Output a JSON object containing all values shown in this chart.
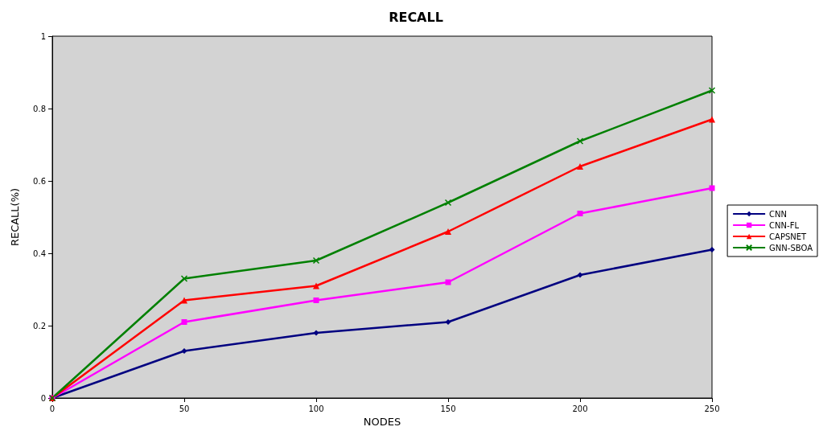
{
  "chart_data": {
    "type": "line",
    "title": "RECALL",
    "xlabel": "NODES",
    "ylabel": "RECALL(%)",
    "x": [
      0,
      50,
      100,
      150,
      200,
      250
    ],
    "xlim": [
      0,
      250
    ],
    "xticks": [
      0,
      50,
      100,
      150,
      200,
      250
    ],
    "ylim": [
      0,
      1
    ],
    "yticks": [
      0,
      0.2,
      0.4,
      0.6,
      0.8,
      1
    ],
    "grid": false,
    "legend": "right",
    "series": [
      {
        "name": "CNN",
        "color": "#000080",
        "marker": "diamond",
        "values": [
          0,
          0.13,
          0.18,
          0.21,
          0.34,
          0.41
        ]
      },
      {
        "name": "CNN-FL",
        "color": "#ff00ff",
        "marker": "square",
        "values": [
          0,
          0.21,
          0.27,
          0.32,
          0.51,
          0.58
        ]
      },
      {
        "name": "CAPSNET",
        "color": "#ff0000",
        "marker": "triangle",
        "values": [
          0,
          0.27,
          0.31,
          0.46,
          0.64,
          0.77
        ]
      },
      {
        "name": "GNN-SBOA",
        "color": "#008000",
        "marker": "cross",
        "values": [
          0,
          0.33,
          0.38,
          0.54,
          0.71,
          0.85
        ]
      }
    ]
  }
}
